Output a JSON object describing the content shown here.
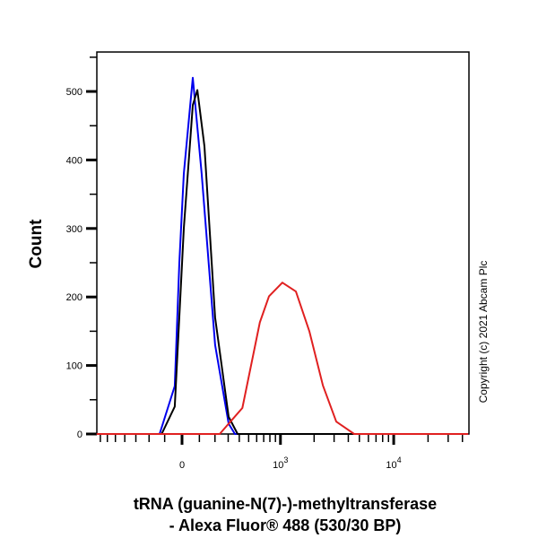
{
  "chart_data": {
    "type": "line",
    "title": "",
    "xlabel_line1": "tRNA (guanine-N(7)-)-methyltransferase",
    "xlabel_line2": "- Alexa Fluor® 488 (530/30 BP)",
    "ylabel": "Count",
    "x_scale": "biexponential",
    "xlim": [
      -760,
      45000
    ],
    "ylim": [
      0,
      560
    ],
    "grid": false,
    "legend": "none",
    "x_ticks": [
      {
        "value": 0,
        "label": "0"
      },
      {
        "value": 1000,
        "label_base": "10",
        "label_exp": "3"
      },
      {
        "value": 10000,
        "label_base": "10",
        "label_exp": "4"
      }
    ],
    "y_ticks": [
      {
        "value": 0,
        "label": "0"
      },
      {
        "value": 100,
        "label": "100"
      },
      {
        "value": 200,
        "label": "200"
      },
      {
        "value": 300,
        "label": "300"
      },
      {
        "value": 400,
        "label": "400"
      },
      {
        "value": 500,
        "label": "500"
      }
    ],
    "series": [
      {
        "color": "#0000ee",
        "points": [
          [
            -131,
            0
          ],
          [
            -41,
            70
          ],
          [
            -15,
            250
          ],
          [
            10,
            380
          ],
          [
            61,
            520
          ],
          [
            114,
            380
          ],
          [
            201,
            130
          ],
          [
            304,
            15
          ],
          [
            359,
            0
          ]
        ]
      },
      {
        "color": "#000000",
        "points": [
          [
            -118,
            0
          ],
          [
            -41,
            40
          ],
          [
            10,
            300
          ],
          [
            61,
            480
          ],
          [
            88,
            502
          ],
          [
            131,
            420
          ],
          [
            201,
            170
          ],
          [
            304,
            25
          ],
          [
            384,
            0
          ]
        ]
      },
      {
        "color": "#e02020",
        "points": [
          [
            234,
            0
          ],
          [
            431,
            38
          ],
          [
            644,
            163
          ],
          [
            785,
            201
          ],
          [
            1040,
            221
          ],
          [
            1377,
            208
          ],
          [
            1815,
            150
          ],
          [
            2388,
            71
          ],
          [
            3134,
            18
          ],
          [
            4500,
            0
          ]
        ]
      }
    ],
    "annotation": "Copyright (c) 2021 Abcam Plc"
  }
}
